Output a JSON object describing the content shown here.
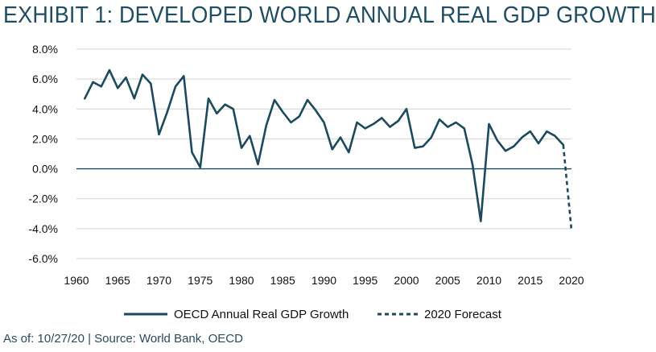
{
  "header": {
    "title": "EXHIBIT 1: DEVELOPED WORLD ANNUAL REAL GDP GROWTH"
  },
  "footer": {
    "source": "As of: 10/27/20 | Source: World Bank, OECD"
  },
  "colors": {
    "series": "#1c4a5c",
    "grid": "#d4d4d4",
    "zero": "#1c4a5c",
    "title": "#1f4e60"
  },
  "chart_data": {
    "type": "line",
    "title": "EXHIBIT 1: DEVELOPED WORLD ANNUAL REAL GDP GROWTH",
    "xlabel": "",
    "ylabel": "",
    "xlim": [
      1960,
      2020
    ],
    "ylim": [
      -6.0,
      8.0
    ],
    "x_ticks": [
      1960,
      1965,
      1970,
      1975,
      1980,
      1985,
      1990,
      1995,
      2000,
      2005,
      2010,
      2015,
      2020
    ],
    "y_ticks": [
      -6.0,
      -4.0,
      -2.0,
      0.0,
      2.0,
      4.0,
      6.0,
      8.0
    ],
    "y_tick_labels": [
      "-6.0%",
      "-4.0%",
      "-2.0%",
      "0.0%",
      "2.0%",
      "4.0%",
      "6.0%",
      "8.0%"
    ],
    "grid": true,
    "legend_position": "bottom",
    "series": [
      {
        "name": "OECD Annual Real GDP Growth",
        "style": "solid",
        "x": [
          1961,
          1962,
          1963,
          1964,
          1965,
          1966,
          1967,
          1968,
          1969,
          1970,
          1971,
          1972,
          1973,
          1974,
          1975,
          1976,
          1977,
          1978,
          1979,
          1980,
          1981,
          1982,
          1983,
          1984,
          1985,
          1986,
          1987,
          1988,
          1989,
          1990,
          1991,
          1992,
          1993,
          1994,
          1995,
          1996,
          1997,
          1998,
          1999,
          2000,
          2001,
          2002,
          2003,
          2004,
          2005,
          2006,
          2007,
          2008,
          2009,
          2010,
          2011,
          2012,
          2013,
          2014,
          2015,
          2016,
          2017,
          2018,
          2019
        ],
        "values": [
          4.7,
          5.8,
          5.5,
          6.6,
          5.4,
          6.1,
          4.7,
          6.3,
          5.7,
          2.3,
          3.8,
          5.5,
          6.2,
          1.1,
          0.1,
          4.7,
          3.7,
          4.3,
          4.0,
          1.4,
          2.2,
          0.3,
          2.9,
          4.6,
          3.8,
          3.1,
          3.5,
          4.6,
          3.9,
          3.1,
          1.3,
          2.1,
          1.1,
          3.1,
          2.7,
          3.0,
          3.4,
          2.8,
          3.2,
          4.0,
          1.4,
          1.5,
          2.1,
          3.3,
          2.8,
          3.1,
          2.7,
          0.3,
          -3.5,
          3.0,
          1.9,
          1.2,
          1.5,
          2.1,
          2.5,
          1.7,
          2.5,
          2.2,
          1.6
        ]
      },
      {
        "name": "2020 Forecast",
        "style": "dashed",
        "x": [
          2019,
          2020
        ],
        "values": [
          1.6,
          -4.1
        ]
      }
    ]
  }
}
